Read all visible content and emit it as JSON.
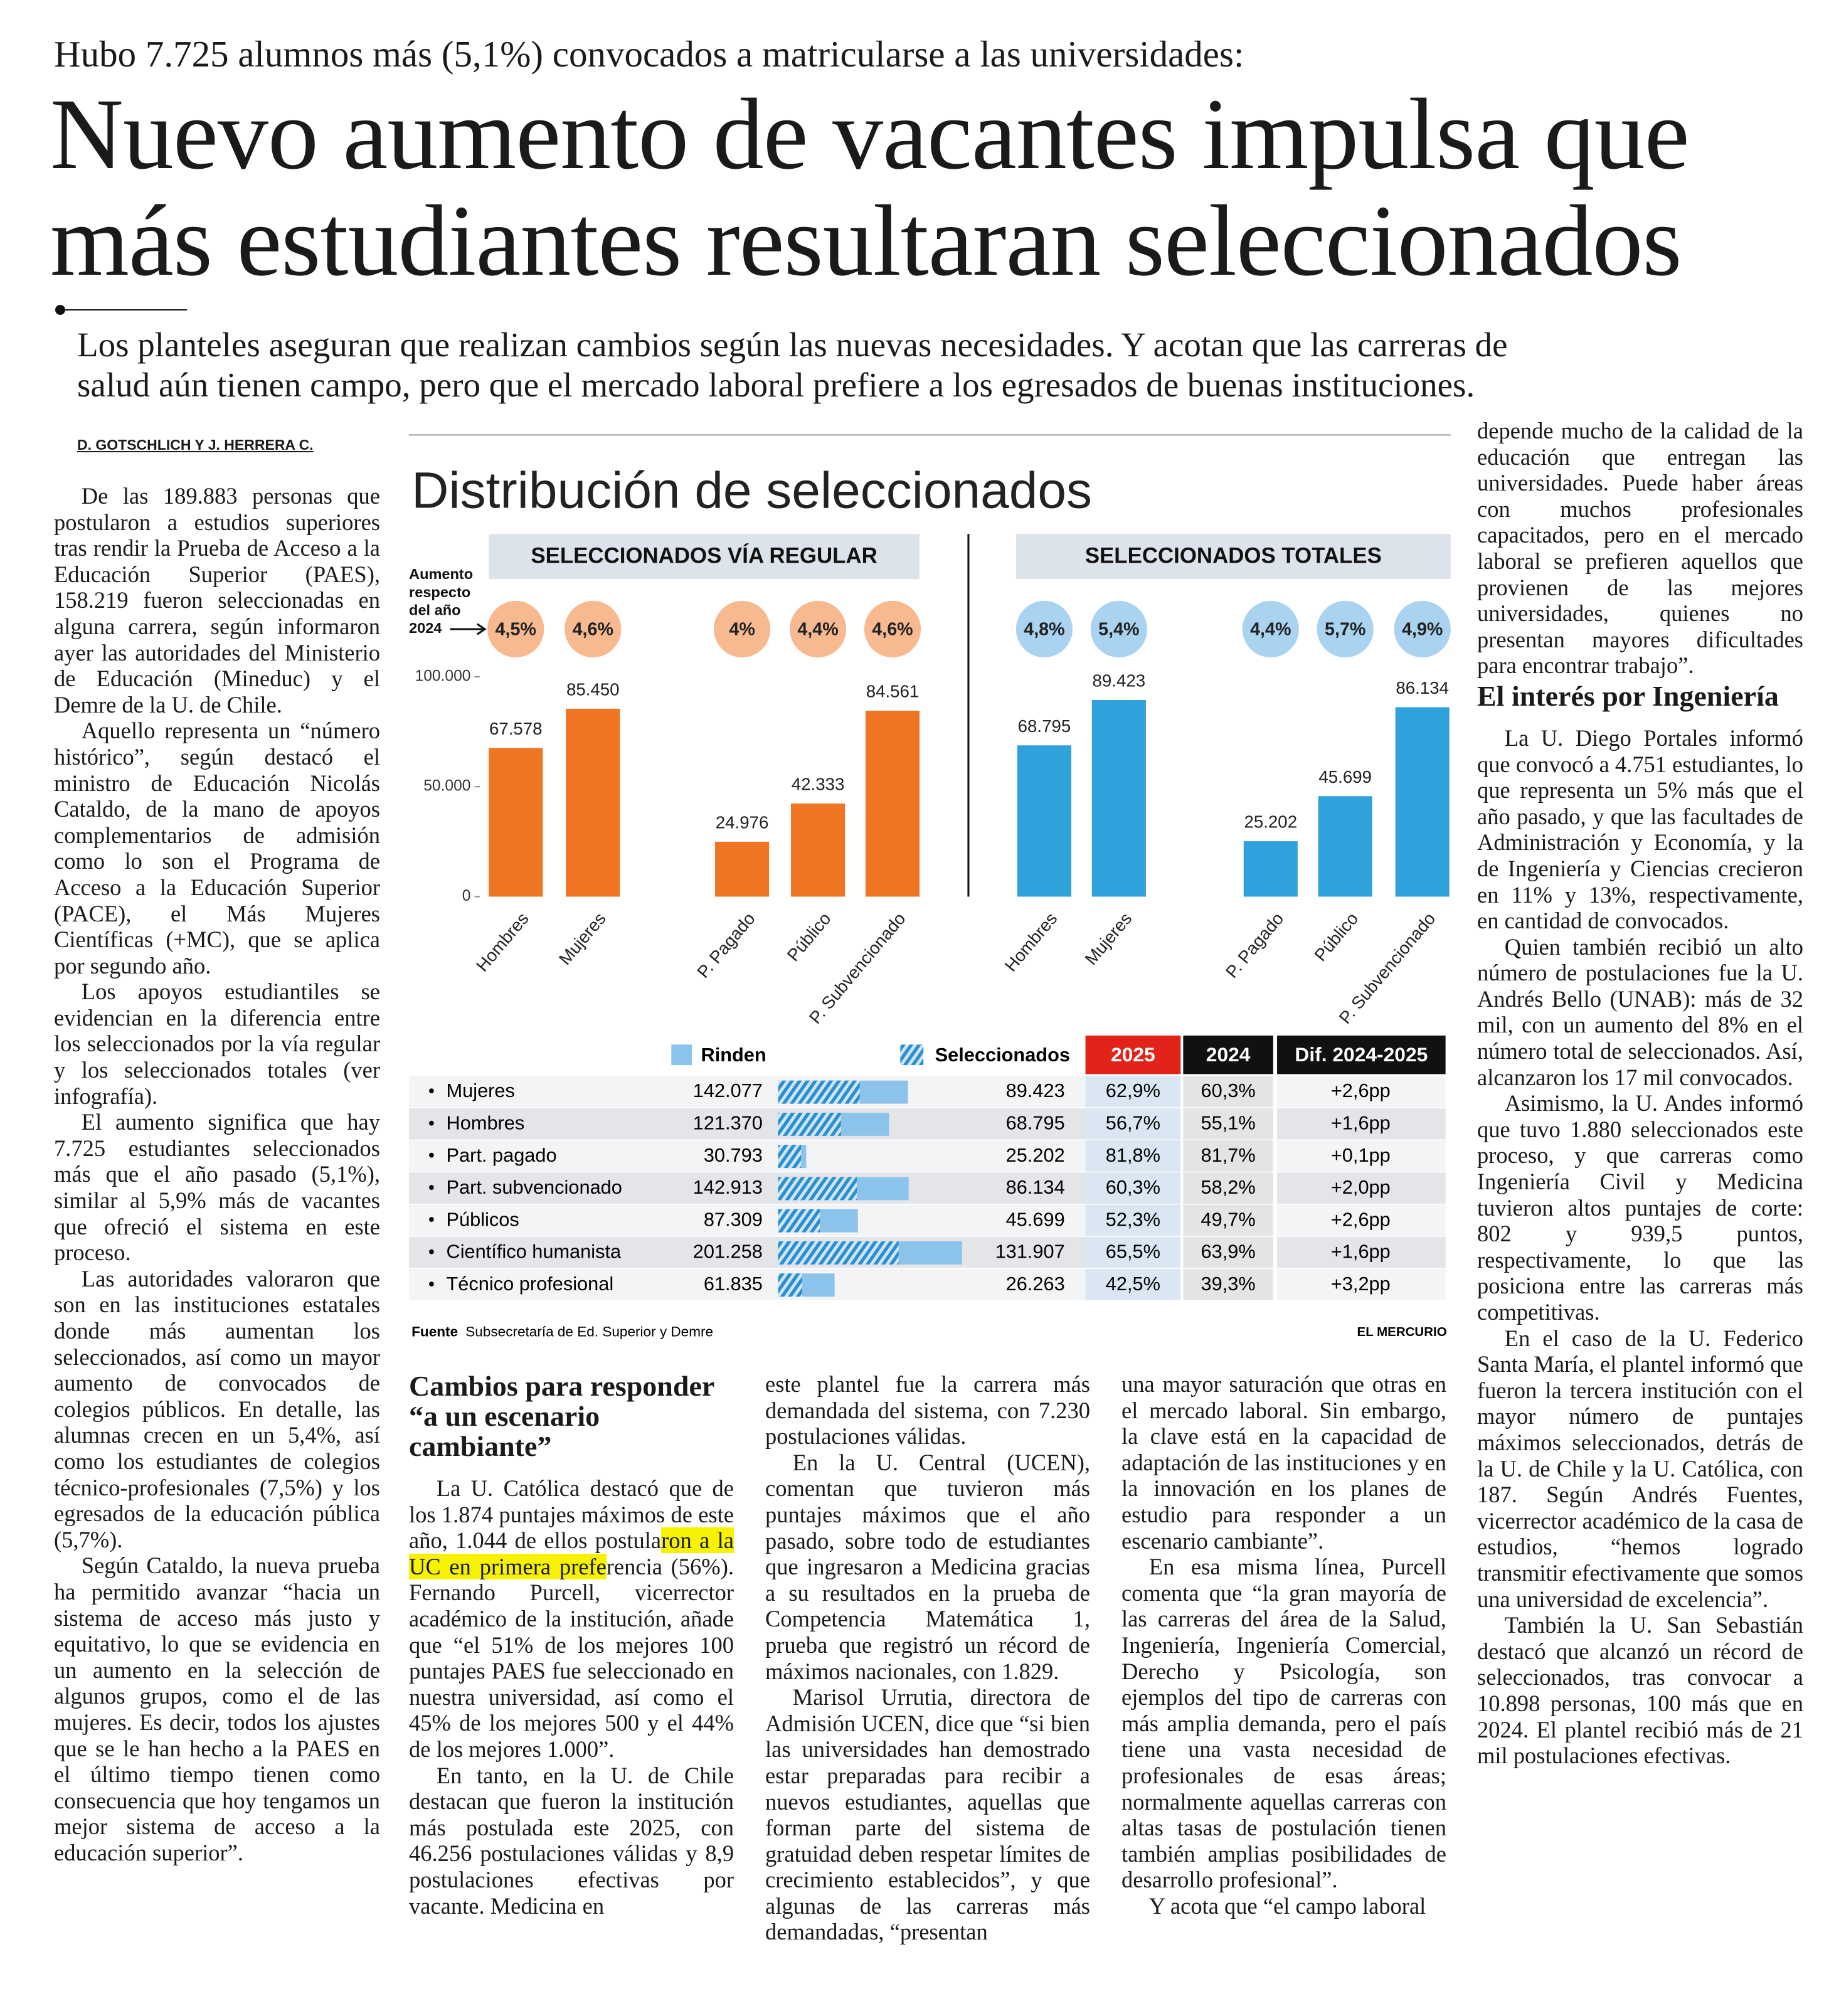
{
  "header": {
    "kicker": "Hubo 7.725 alumnos más (5,1%) convocados a matricularse a las universidades:",
    "title": [
      "Nuevo aumento de vacantes impulsa que",
      "más estudiantes resultaran seleccionados"
    ],
    "deck": [
      "Los planteles aseguran que realizan cambios según las nuevas necesidades. Y acotan que las carreras de",
      "salud aún tienen campo, pero que el mercado laboral prefiere a los egresados de buenas instituciones."
    ]
  },
  "article": {
    "byline": "D. GOTSCHLICH Y J. HERRERA C.",
    "columns": [
      {
        "blocks": [
          {
            "text": "De las 189.883 personas que postularon a estudios superiores tras rendir la Prueba de Acceso a la Educación Superior (PAES), 158.219 fueron seleccionadas en alguna carrera, según informaron ayer las autoridades del Ministerio de Educación (Mineduc) y el Demre de la U. de Chile."
          },
          {
            "text": "Aquello representa un “número histórico”, según destacó el ministro de Educación Nicolás Cataldo, de la mano de apoyos complementarios de admisión como lo son el Programa de Acceso a la Educación Superior (PACE), el Más Mujeres Científicas (+MC), que se aplica por segundo año."
          },
          {
            "text": "Los apoyos estudiantiles se evidencian en la diferencia entre los seleccionados por la vía regular y los seleccionados totales (ver infografía)."
          },
          {
            "text": "El aumento significa que hay 7.725 estudiantes seleccionados más que el año pasado (5,1%), similar al 5,9% más de vacantes que ofreció el sistema en este proceso."
          },
          {
            "text": "Las autoridades valoraron que son en las instituciones estatales donde más aumentan los seleccionados, así como un mayor aumento de convocados de colegios públicos. En detalle, las alumnas crecen en un 5,4%, así como los estudiantes de colegios técnico-profesionales (7,5%) y los egresados de la educación pública (5,7%)."
          },
          {
            "text": "Según Cataldo, la nueva prueba ha permitido avanzar “hacia un sistema de acceso más justo y equitativo, lo que se evidencia en un aumento en la selección de algunos grupos, como el de las mujeres. Es decir, todos los ajustes que se le han hecho a la PAES en el último tiempo tienen como consecuencia que hoy tengamos un mejor sistema de acceso a la educación superior”."
          }
        ]
      },
      {
        "blocks": [
          {
            "heading": "Cambios para responder “a un escenario cambiante”"
          },
          {
            "text": [
              "La U. Católica destacó que de los 1.874 puntajes máximos de este año, 1.044 de ellos postula",
              {
                "highlight": "ron a la UC en primera prefe"
              },
              "rencia (56%). Fernando Purcell, vicerrector académico de la institución, añade que “el 51% de los mejores 100 puntajes PAES fue seleccionado en nuestra universidad, así como el 45% de los mejores 500 y el 44% de los mejores 1.000”."
            ]
          },
          {
            "text": "En tanto, en la U. de Chile destacan que fueron la institución más postulada este 2025, con 46.256 postulaciones válidas y 8,9 postulaciones efectivas por vacante. Medicina en"
          }
        ]
      },
      {
        "blocks": [
          {
            "text": "este plantel fue la carrera más demandada del sistema, con 7.230 postulaciones válidas."
          },
          {
            "text": "En la U. Central (UCEN), comentan que tuvieron más puntajes máximos que el año pasado, sobre todo de estudiantes que ingresaron a Medicina gracias a su resultados en la prueba de Competencia Matemática 1, prueba que registró un récord de máximos nacionales, con 1.829."
          },
          {
            "text": "Marisol Urrutia, directora de Admisión UCEN, dice que “si bien las universidades han demostrado estar preparadas para recibir a nuevos estudiantes, aquellas que forman parte del sistema de gratuidad deben respetar límites de crecimiento establecidos”, y que algunas de las carreras más demandadas, “presentan"
          }
        ]
      },
      {
        "blocks": [
          {
            "text": "una mayor saturación que otras en el mercado laboral. Sin embargo, la clave está en la capacidad de adaptación de las instituciones y en la innovación en los planes de estudio para responder a un escenario cambiante”."
          },
          {
            "text": "En esa misma línea, Purcell comenta que “la gran mayoría de las carreras del área de la Salud, Ingeniería, Ingeniería Comercial, Derecho y Psicología, son ejemplos del tipo de carreras con más amplia demanda, pero el país tiene una vasta necesidad de profesionales de esas áreas; normalmente aquellas carreras con altas tasas de postulación tienen también amplias posibilidades de desarrollo profesional”."
          },
          {
            "text": "Y acota que “el campo laboral"
          }
        ]
      },
      {
        "blocks": [
          {
            "text": "depende mucho de la calidad de la educación que entregan las universidades. Puede haber áreas con muchos profesionales capacitados, pero en el mercado laboral se prefieren aquellos que provienen de las mejores universidades, quienes no presentan mayores dificultades para encontrar trabajo”."
          },
          {
            "heading": "El interés por Ingeniería"
          },
          {
            "text": "La U. Diego Portales informó que convocó a 4.751 estudiantes, lo que representa un 5% más que el año pasado, y que las facultades de Administración y Economía, y la de Ingeniería y Ciencias crecieron en 11% y 13%, respectivamente, en cantidad de convocados."
          },
          {
            "text": "Quien también recibió un alto número de postulaciones fue la U. Andrés Bello (UNAB): más de 32 mil, con un aumento del 8% en el número total de seleccionados. Así, alcanzaron los 17 mil convocados."
          },
          {
            "text": "Asimismo, la U. Andes informó que tuvo 1.880 seleccionados este proceso, y que carreras como Ingeniería Civil y Medicina tuvieron altos puntajes de corte: 802 y 939,5 puntos, respectivamente, lo que las posiciona entre las carreras más competitivas."
          },
          {
            "text": "En el caso de la U. Federico Santa María, el plantel informó que fueron la tercera institución con el mayor número de puntajes máximos seleccionados, detrás de la U. de Chile y la U. Católica, con 187. Según Andrés Fuentes, vicerrector académico de la casa de estudios, “hemos logrado transmitir efectivamente que somos una universidad de excelencia”."
          },
          {
            "text": "También la U. San Sebastián destacó que alcanzó un récord de seleccionados, tras convocar a 10.898 personas, 100 más que en 2024. El plantel recibió más de 21 mil postulaciones efectivas."
          }
        ]
      }
    ]
  },
  "infographic": {
    "title": "Distribución de seleccionados",
    "source_label": "Fuente",
    "source": "Subsecretaría de Ed. Superior y Demre",
    "credit": "EL MERCURIO",
    "table": {
      "columns": [
        "Rinden",
        "Seleccionados",
        "2025",
        "2024",
        "Dif. 2024-2025"
      ],
      "rinden_color": "#8cc3ea",
      "seleccionados_color": "#2b8fd0",
      "rows": [
        {
          "label": "Mujeres",
          "rinden": 142077,
          "rinden_label": "142.077",
          "seleccionados": 89423,
          "seleccionados_label": "89.423",
          "pct_2025": "62,9%",
          "pct_2024": "60,3%",
          "dif": "+2,6pp"
        },
        {
          "label": "Hombres",
          "rinden": 121370,
          "rinden_label": "121.370",
          "seleccionados": 68795,
          "seleccionados_label": "68.795",
          "pct_2025": "56,7%",
          "pct_2024": "55,1%",
          "dif": "+1,6pp"
        },
        {
          "label": "Part. pagado",
          "rinden": 30793,
          "rinden_label": "30.793",
          "seleccionados": 25202,
          "seleccionados_label": "25.202",
          "pct_2025": "81,8%",
          "pct_2024": "81,7%",
          "dif": "+0,1pp"
        },
        {
          "label": "Part. subvencionado",
          "rinden": 142913,
          "rinden_label": "142.913",
          "seleccionados": 86134,
          "seleccionados_label": "86.134",
          "pct_2025": "60,3%",
          "pct_2024": "58,2%",
          "dif": "+2,0pp"
        },
        {
          "label": "Públicos",
          "rinden": 87309,
          "rinden_label": "87.309",
          "seleccionados": 45699,
          "seleccionados_label": "45.699",
          "pct_2025": "52,3%",
          "pct_2024": "49,7%",
          "dif": "+2,6pp"
        },
        {
          "label": "Científico humanista",
          "rinden": 201258,
          "rinden_label": "201.258",
          "seleccionados": 131907,
          "seleccionados_label": "131.907",
          "pct_2025": "65,5%",
          "pct_2024": "63,9%",
          "dif": "+1,6pp"
        },
        {
          "label": "Técnico profesional",
          "rinden": 61835,
          "rinden_label": "61.835",
          "seleccionados": 26263,
          "seleccionados_label": "26.263",
          "pct_2025": "42,5%",
          "pct_2024": "39,3%",
          "dif": "+3,2pp"
        }
      ]
    }
  },
  "chart_data": [
    {
      "type": "bar",
      "header": "SELECCIONADOS VÍA REGULAR",
      "change_title": [
        "Aumento",
        "respecto",
        "del año",
        "2024"
      ],
      "categories": [
        "Hombres",
        "Mujeres",
        "P. Pagado",
        "Público",
        "P. Subvencionado"
      ],
      "values": [
        67578,
        85450,
        24976,
        42333,
        84561
      ],
      "value_labels": [
        "67.578",
        "85.450",
        "24.976",
        "42.333",
        "84.561"
      ],
      "changes": [
        "4,5%",
        "4,6%",
        "4%",
        "4,4%",
        "4,6%"
      ],
      "color": "#f07522",
      "change_color": "#f7b98f",
      "ylim": [
        0,
        100000
      ],
      "yticks": [
        0,
        {
          "value": 50000,
          "label": "50.000"
        },
        {
          "value": 100000,
          "label": "100.000"
        }
      ]
    },
    {
      "type": "bar",
      "header": "SELECCIONADOS TOTALES",
      "categories": [
        "Hombres",
        "Mujeres",
        "P. Pagado",
        "Público",
        "P. Subvencionado"
      ],
      "values": [
        68795,
        89423,
        25202,
        45699,
        86134
      ],
      "value_labels": [
        "68.795",
        "89.423",
        "25.202",
        "45.699",
        "86.134"
      ],
      "changes": [
        "4,8%",
        "5,4%",
        "4,4%",
        "5,7%",
        "4,9%"
      ],
      "color": "#2fa2dc",
      "change_color": "#a9d3ef",
      "ylim": [
        0,
        100000
      ]
    }
  ]
}
